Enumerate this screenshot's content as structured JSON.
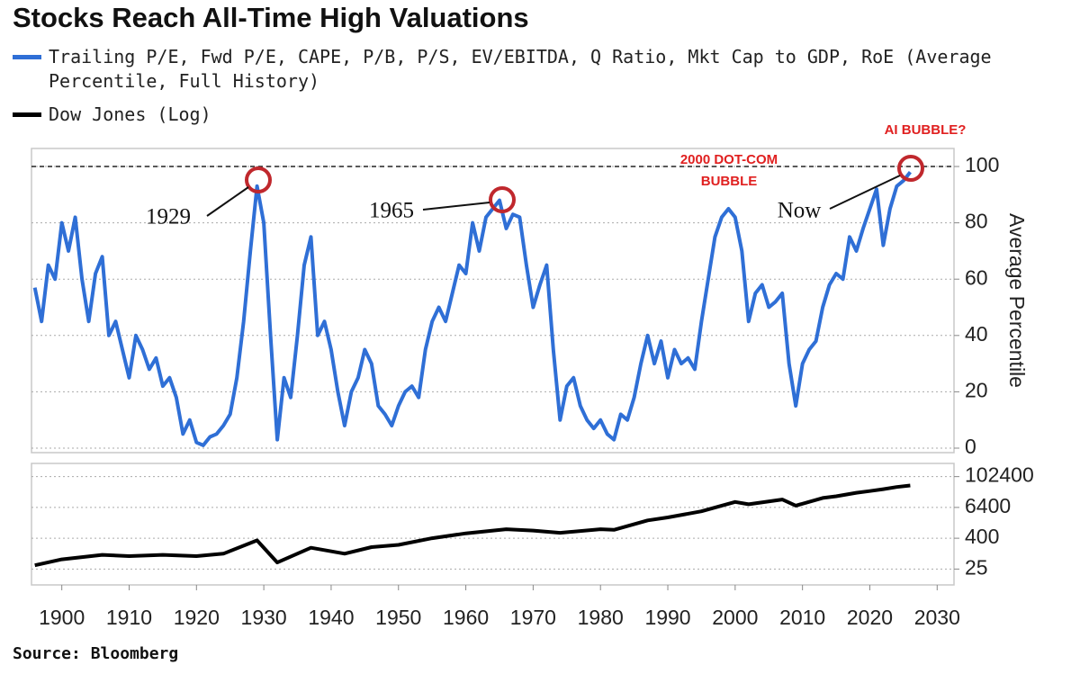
{
  "title": "Stocks Reach All-Time High Valuations",
  "source": "Source: Bloomberg",
  "chart_data": [
    {
      "type": "line",
      "ylabel": "Average Percentile",
      "xlim": [
        1895.5,
        2032.5
      ],
      "ylim": [
        -1.6,
        106.4
      ],
      "yticks": [
        0,
        20,
        40,
        60,
        80,
        100
      ],
      "grid": true,
      "reference_line": 100,
      "annotations": [
        "1929",
        "1965",
        "Now",
        "2000 DOT-COM",
        "BUBBLE",
        "AI BUBBLE?"
      ],
      "x": [
        1896,
        1897,
        1898,
        1899,
        1900,
        1901,
        1902,
        1903,
        1904,
        1905,
        1906,
        1907,
        1908,
        1909,
        1910,
        1911,
        1912,
        1913,
        1914,
        1915,
        1916,
        1917,
        1918,
        1919,
        1920,
        1921,
        1922,
        1923,
        1924,
        1925,
        1926,
        1927,
        1928,
        1929,
        1930,
        1931,
        1932,
        1933,
        1934,
        1935,
        1936,
        1937,
        1938,
        1939,
        1940,
        1941,
        1942,
        1943,
        1944,
        1945,
        1946,
        1947,
        1948,
        1949,
        1950,
        1951,
        1952,
        1953,
        1954,
        1955,
        1956,
        1957,
        1958,
        1959,
        1960,
        1961,
        1962,
        1963,
        1964,
        1965,
        1966,
        1967,
        1968,
        1969,
        1970,
        1971,
        1972,
        1973,
        1974,
        1975,
        1976,
        1977,
        1978,
        1979,
        1980,
        1981,
        1982,
        1983,
        1984,
        1985,
        1986,
        1987,
        1988,
        1989,
        1990,
        1991,
        1992,
        1993,
        1994,
        1995,
        1996,
        1997,
        1998,
        1999,
        2000,
        2001,
        2002,
        2003,
        2004,
        2005,
        2006,
        2007,
        2008,
        2009,
        2010,
        2011,
        2012,
        2013,
        2014,
        2015,
        2016,
        2017,
        2018,
        2019,
        2020,
        2021,
        2022,
        2023,
        2024,
        2025,
        2026
      ],
      "series": [
        {
          "name": "Trailing P/E, Fwd P/E, CAPE, P/B, P/S, EV/EBITDA, Q Ratio, Mkt Cap to GDP, RoE (Average Percentile, Full History)",
          "color": "#2f6fd6",
          "values": [
            57,
            45,
            65,
            60,
            80,
            70,
            82,
            60,
            45,
            62,
            68,
            40,
            45,
            35,
            25,
            40,
            35,
            28,
            32,
            22,
            25,
            18,
            5,
            10,
            2,
            1,
            4,
            5,
            8,
            12,
            25,
            45,
            70,
            93,
            80,
            40,
            3,
            25,
            18,
            40,
            65,
            75,
            40,
            45,
            35,
            20,
            8,
            20,
            25,
            35,
            30,
            15,
            12,
            8,
            15,
            20,
            22,
            18,
            35,
            45,
            50,
            45,
            55,
            65,
            62,
            80,
            70,
            82,
            85,
            88,
            78,
            83,
            82,
            65,
            50,
            58,
            65,
            35,
            10,
            22,
            25,
            15,
            10,
            7,
            10,
            5,
            3,
            12,
            10,
            18,
            30,
            40,
            30,
            38,
            25,
            35,
            30,
            32,
            28,
            45,
            60,
            75,
            82,
            85,
            82,
            70,
            45,
            55,
            58,
            50,
            52,
            55,
            30,
            15,
            30,
            35,
            38,
            50,
            58,
            62,
            60,
            75,
            70,
            78,
            85,
            92,
            72,
            85,
            93,
            95,
            98
          ]
        }
      ]
    },
    {
      "type": "line",
      "log_y": true,
      "xlim": [
        1895.5,
        2032.5
      ],
      "ylim": [
        6,
        335000
      ],
      "yticks": [
        25,
        400,
        6400,
        102400
      ],
      "xticks": [
        1900,
        1910,
        1920,
        1930,
        1940,
        1950,
        1960,
        1970,
        1980,
        1990,
        2000,
        2010,
        2020,
        2030
      ],
      "grid": true,
      "x": [
        1896,
        1900,
        1906,
        1910,
        1915,
        1920,
        1924,
        1929,
        1932,
        1937,
        1942,
        1946,
        1950,
        1955,
        1960,
        1966,
        1970,
        1974,
        1980,
        1982,
        1987,
        1990,
        1995,
        2000,
        2002,
        2007,
        2009,
        2013,
        2015,
        2018,
        2020,
        2022,
        2024,
        2026
      ],
      "series": [
        {
          "name": "Dow Jones (Log)",
          "color": "#000000",
          "values": [
            35,
            60,
            90,
            80,
            90,
            80,
            100,
            330,
            45,
            170,
            100,
            180,
            220,
            400,
            620,
            900,
            800,
            650,
            900,
            850,
            2000,
            2600,
            4500,
            10500,
            8500,
            13000,
            7500,
            15000,
            17500,
            24000,
            28000,
            33000,
            40000,
            46000
          ]
        }
      ]
    }
  ]
}
